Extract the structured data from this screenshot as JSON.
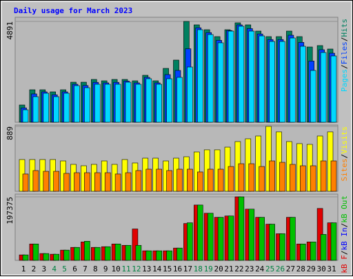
{
  "title": "Daily usage for March 2023",
  "separator": "/",
  "chart_data": [
    {
      "type": "bar",
      "ylim": [
        0,
        4891
      ],
      "yticks": [
        4891
      ],
      "legend_order": "reverse",
      "series": [
        {
          "name": "Hits",
          "color": "#008060",
          "values": [
            837,
            1575,
            1575,
            1474,
            1575,
            1943,
            1943,
            2077,
            2010,
            2077,
            2077,
            2010,
            2278,
            2010,
            2613,
            3015,
            4891,
            4724,
            4489,
            4154,
            4489,
            4824,
            4724,
            4422,
            4154,
            4154,
            4422,
            4154,
            3651,
            3719,
            3551
          ]
        },
        {
          "name": "Files",
          "color": "#0040ff",
          "values": [
            697,
            1374,
            1474,
            1334,
            1474,
            1843,
            1782,
            1937,
            1910,
            1937,
            1997,
            1910,
            2178,
            1910,
            2312,
            2513,
            3564,
            4583,
            4349,
            3973,
            4449,
            4724,
            4543,
            4282,
            4014,
            4014,
            4221,
            3873,
            2968,
            3518,
            3350
          ]
        },
        {
          "name": "Pages",
          "color": "#00d8ff",
          "values": [
            603,
            1240,
            1407,
            1240,
            1407,
            1776,
            1675,
            1843,
            1843,
            1843,
            1943,
            1843,
            2111,
            1843,
            2111,
            2178,
            2680,
            4489,
            4255,
            3853,
            4422,
            4657,
            4422,
            4188,
            3920,
            3920,
            4087,
            3685,
            2513,
            3384,
            3216
          ]
        }
      ]
    },
    {
      "type": "bar",
      "ylim": [
        0,
        889
      ],
      "yticks": [
        889
      ],
      "legend_order": "reverse",
      "series": [
        {
          "name": "Visits",
          "color": "#ffff00",
          "values": [
            435,
            435,
            435,
            435,
            416,
            369,
            350,
            369,
            416,
            369,
            435,
            388,
            454,
            454,
            416,
            454,
            473,
            539,
            568,
            568,
            605,
            681,
            719,
            757,
            889,
            814,
            681,
            653,
            643,
            757,
            814
          ]
        },
        {
          "name": "Sites",
          "color": "#ff8000",
          "values": [
            237,
            284,
            274,
            274,
            246,
            255,
            255,
            255,
            255,
            237,
            255,
            284,
            303,
            303,
            284,
            303,
            303,
            265,
            303,
            303,
            340,
            378,
            378,
            340,
            416,
            397,
            369,
            350,
            350,
            416,
            416
          ]
        }
      ]
    },
    {
      "type": "bar",
      "ylim": [
        0,
        197375
      ],
      "yticks": [
        197375
      ],
      "legend_order": "normal",
      "categories": [
        "1",
        "2",
        "3",
        "4",
        "5",
        "6",
        "7",
        "8",
        "9",
        "10",
        "11",
        "12",
        "13",
        "14",
        "15",
        "16",
        "17",
        "18",
        "19",
        "20",
        "21",
        "22",
        "23",
        "24",
        "25",
        "26",
        "27",
        "28",
        "29",
        "30",
        "31"
      ],
      "category_colors": [
        "#000000",
        "#000000",
        "#000000",
        "#008040",
        "#008040",
        "#000000",
        "#000000",
        "#000000",
        "#000000",
        "#000000",
        "#008040",
        "#008040",
        "#000000",
        "#000000",
        "#000000",
        "#000000",
        "#000000",
        "#008040",
        "#008040",
        "#000000",
        "#000000",
        "#000000",
        "#000000",
        "#000000",
        "#008040",
        "#008040",
        "#000000",
        "#000000",
        "#000000",
        "#000000",
        "#000000"
      ],
      "series": [
        {
          "name": "kB F",
          "color": "#e00000",
          "values": [
            16976,
            50928,
            21220,
            19098,
            31830,
            40318,
            57294,
            40318,
            42440,
            50928,
            46684,
            97612,
            29708,
            29708,
            29708,
            38196,
            114588,
            171882,
            146418,
            133686,
            137930,
            197375,
            159150,
            133686,
            112466,
            82758,
            133686,
            50928,
            57294,
            161272,
            116710
          ]
        },
        {
          "name": "kB In",
          "color": "#0000ff",
          "values": [
            0,
            0,
            0,
            0,
            0,
            0,
            0,
            0,
            0,
            0,
            0,
            0,
            0,
            0,
            0,
            0,
            0,
            0,
            0,
            0,
            0,
            0,
            0,
            0,
            0,
            0,
            0,
            0,
            0,
            0,
            0
          ]
        },
        {
          "name": "kB Out",
          "color": "#00c000",
          "values": [
            16976,
            50928,
            21220,
            19098,
            31830,
            40318,
            59416,
            40318,
            42440,
            50928,
            46684,
            46684,
            29708,
            29708,
            29708,
            38196,
            116710,
            171882,
            146418,
            133686,
            137930,
            197375,
            159150,
            133686,
            112466,
            82758,
            133686,
            50928,
            57294,
            80636,
            116710
          ]
        }
      ]
    }
  ]
}
